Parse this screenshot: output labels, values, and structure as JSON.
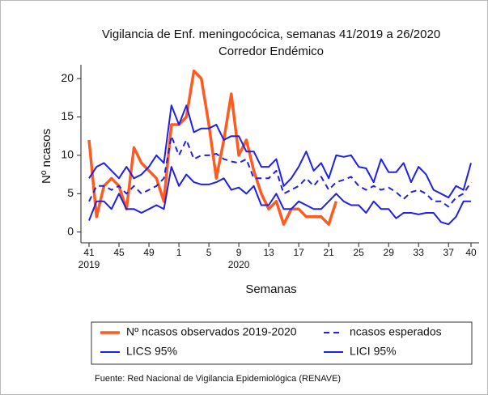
{
  "chart_data": {
    "type": "line",
    "title": "Vigilancia de Enf. meningocócica, semanas 41/2019 a 26/2020",
    "subtitle": "Corredor Endémico",
    "y_label": "Nº ncasos",
    "x_label": "Semanas",
    "source": "Fuente: Red Nacional de Vigilancia Epidemiológica (RENAVE)",
    "categories": [
      "41",
      null,
      null,
      null,
      "45",
      null,
      null,
      null,
      "49",
      null,
      null,
      null,
      "1",
      null,
      null,
      null,
      "5",
      null,
      null,
      null,
      "9",
      null,
      null,
      null,
      "13",
      null,
      null,
      null,
      "17",
      null,
      null,
      null,
      "21",
      null,
      null,
      null,
      "25",
      null,
      null,
      null,
      "29",
      null,
      null,
      null,
      "33",
      null,
      null,
      null,
      "37",
      null,
      null,
      "40"
    ],
    "x_group_labels": [
      {
        "at": "41",
        "label": "2019"
      },
      {
        "at": "9",
        "label": "2020"
      }
    ],
    "ylim": [
      -1.4,
      21.8
    ],
    "yticks": [
      0,
      5,
      10,
      15,
      20
    ],
    "legend_columns": 2,
    "series": [
      {
        "name": "Nº ncasos observados 2019-2020",
        "color": "#ff5a1f",
        "dashed": false,
        "width": 3.5,
        "values": [
          12,
          2,
          6,
          7,
          6,
          3,
          11,
          9,
          8,
          7,
          4,
          14,
          14,
          15,
          21,
          20,
          14,
          7,
          12,
          18,
          10,
          12,
          8,
          5,
          3,
          4,
          1,
          3,
          3,
          2,
          2,
          2,
          1,
          4,
          null,
          null,
          null,
          null,
          null,
          null,
          null,
          null,
          null,
          null,
          null,
          null,
          null,
          null,
          null,
          null,
          null,
          null
        ]
      },
      {
        "name": "ncasos esperados",
        "color": "#1f1fe6",
        "dashed": true,
        "width": 2,
        "values": [
          4,
          6,
          6,
          5.5,
          6,
          5,
          6,
          5,
          5.5,
          6,
          7,
          12.5,
          10,
          12,
          9.5,
          10,
          10,
          10.2,
          9.5,
          9.2,
          9,
          9.5,
          7,
          7,
          7,
          8,
          5,
          5.5,
          6,
          7,
          6,
          7.2,
          5.5,
          6.5,
          6.8,
          7.2,
          6,
          5.5,
          6,
          5.5,
          5.8,
          5.2,
          4.3,
          5.2,
          5.5,
          5,
          4,
          4,
          3.3,
          4.5,
          5,
          6.5
        ]
      },
      {
        "name": "LICS 95%",
        "color": "#1f1fe6",
        "dashed": false,
        "width": 2,
        "values": [
          7,
          8.5,
          9,
          8,
          7,
          8.5,
          7,
          7.5,
          8.5,
          10,
          9,
          16.5,
          14,
          16.5,
          13,
          13.5,
          13.5,
          14,
          12,
          12.5,
          12.5,
          10.5,
          10.5,
          8.5,
          8.5,
          9.5,
          6,
          7,
          8.5,
          10.5,
          8,
          9,
          7,
          10,
          9.8,
          10,
          8.5,
          8.3,
          6.5,
          9.5,
          7.8,
          7.8,
          9,
          6.5,
          8.5,
          7.5,
          5.5,
          5,
          4.5,
          6,
          5.5,
          9
        ]
      },
      {
        "name": "LICI 95%",
        "color": "#1f1fe6",
        "dashed": false,
        "width": 2,
        "values": [
          1.5,
          4,
          4,
          3,
          5,
          3,
          3,
          2.5,
          3,
          3.5,
          3,
          8.5,
          6,
          7.5,
          6.5,
          6.2,
          6.2,
          6.5,
          7,
          5.5,
          5.8,
          5,
          6,
          3.5,
          3.5,
          5,
          3,
          3,
          4,
          3.5,
          3,
          3,
          4,
          5,
          4,
          3.5,
          3.5,
          2.5,
          4,
          3,
          3,
          1.8,
          2.5,
          2.5,
          2.3,
          2.5,
          2.5,
          1.3,
          1,
          2,
          4,
          4
        ]
      }
    ]
  }
}
